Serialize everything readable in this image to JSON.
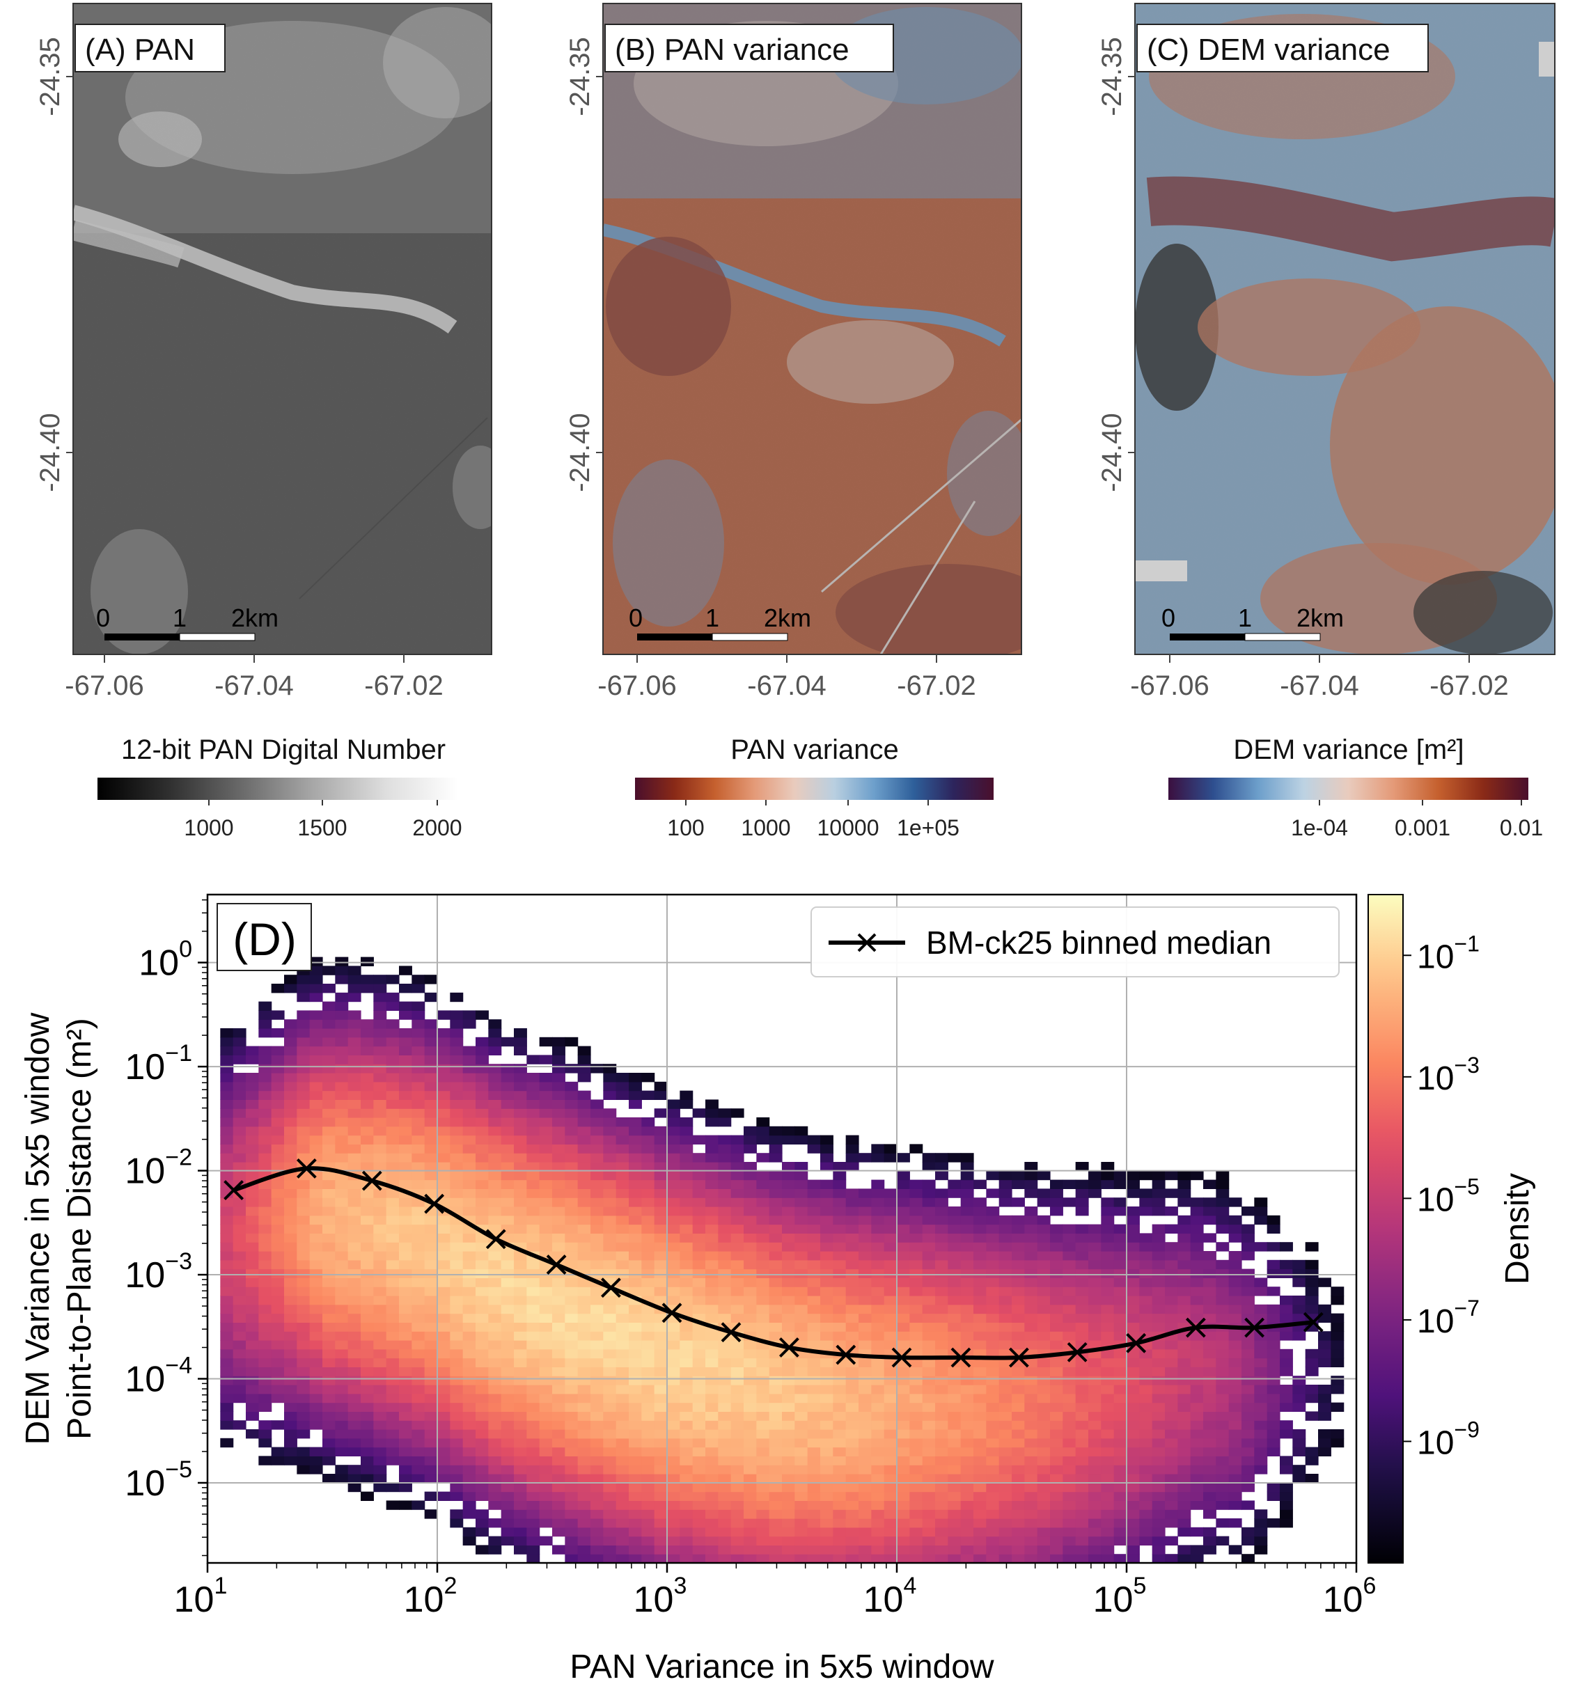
{
  "maps": [
    {
      "id": "A",
      "title": "(A) PAN",
      "colorbar_title": "12-bit PAN Digital Number",
      "colorbar_ticks": [
        "1000",
        "1500",
        "2000"
      ],
      "colorbar_ramp": [
        "#000000",
        "#303030",
        "#6a6a6a",
        "#a8a8a8",
        "#dedede",
        "#ffffff"
      ]
    },
    {
      "id": "B",
      "title": "(B) PAN variance",
      "colorbar_title": "PAN variance",
      "colorbar_ticks": [
        "100",
        "1000",
        "10000",
        "1e+05"
      ],
      "colorbar_ramp": [
        "#4a0f2c",
        "#8a2a17",
        "#c5602e",
        "#e49a78",
        "#e9cbbd",
        "#b9cfe0",
        "#6d9fcb",
        "#2e5f9a",
        "#2d245c",
        "#4a0f2c"
      ]
    },
    {
      "id": "C",
      "title": "(C) DEM variance",
      "colorbar_title": "DEM variance [m²]",
      "colorbar_ticks": [
        "1e-04",
        "0.001",
        "0.01"
      ],
      "colorbar_ramp": [
        "#3b0f3f",
        "#2e4f8f",
        "#6d9fcb",
        "#bcd2e3",
        "#e9cbbd",
        "#e49a78",
        "#c5602e",
        "#8a2a17",
        "#4a0f2c"
      ]
    }
  ],
  "map_axes": {
    "lat_ticks": [
      "-24.35",
      "-24.40"
    ],
    "lon_ticks": [
      "-67.06",
      "-67.04",
      "-67.02"
    ],
    "scalebar_labels": [
      "0",
      "1",
      "2km"
    ]
  },
  "colors": {
    "pan_dark": "#2e2e2e",
    "pan_mid": "#5a5a5a",
    "pan_bright": "#e8e8e8",
    "var_red": "#b04a23",
    "var_darkred": "#7a1f14",
    "var_blue": "#5f8fc0",
    "var_light": "#d8c4bb",
    "dem_blue": "#7aa3c9",
    "dem_orange": "#c86a45",
    "dem_darkred": "#6a1a22"
  },
  "chart_data": {
    "type": "heatmap",
    "panel_label": "(D)",
    "xlabel": "PAN Variance in 5x5 window",
    "ylabel_lines": [
      "DEM Variance in 5x5 window",
      "Point-to-Plane Distance (m²)"
    ],
    "xscale": "log",
    "yscale": "log",
    "xlim": [
      10,
      1000000
    ],
    "ylim": [
      1.7e-06,
      4.5
    ],
    "x_tick_labels": [
      {
        "b": "10",
        "e": "1"
      },
      {
        "b": "10",
        "e": "2"
      },
      {
        "b": "10",
        "e": "3"
      },
      {
        "b": "10",
        "e": "4"
      },
      {
        "b": "10",
        "e": "5"
      },
      {
        "b": "10",
        "e": "6"
      }
    ],
    "y_tick_labels": [
      {
        "b": "10",
        "e": "0"
      },
      {
        "b": "10",
        "e": "−1"
      },
      {
        "b": "10",
        "e": "−2"
      },
      {
        "b": "10",
        "e": "−3"
      },
      {
        "b": "10",
        "e": "−4"
      },
      {
        "b": "10",
        "e": "−5"
      }
    ],
    "grid": true,
    "legend_label": "BM-ck25 binned median",
    "legend_position": "top-right",
    "colorbar_label": "Density",
    "colorbar_ticks": [
      {
        "b": "10",
        "e": "−1"
      },
      {
        "b": "10",
        "e": "−3"
      },
      {
        "b": "10",
        "e": "−5"
      },
      {
        "b": "10",
        "e": "−7"
      },
      {
        "b": "10",
        "e": "−9"
      }
    ],
    "colorbar_range_log10": [
      -11,
      0
    ],
    "median_series": {
      "x": [
        13,
        27,
        52,
        97,
        180,
        330,
        570,
        1050,
        1900,
        3400,
        6000,
        10500,
        19000,
        34000,
        61000,
        110000,
        200000,
        360000,
        650000
      ],
      "y": [
        0.0065,
        0.0105,
        0.008,
        0.0048,
        0.0022,
        0.00125,
        0.00075,
        0.00043,
        0.00028,
        0.0002,
        0.00017,
        0.00016,
        0.00016,
        0.00016,
        0.00018,
        0.00022,
        0.00031,
        0.00031,
        0.00035
      ]
    }
  }
}
